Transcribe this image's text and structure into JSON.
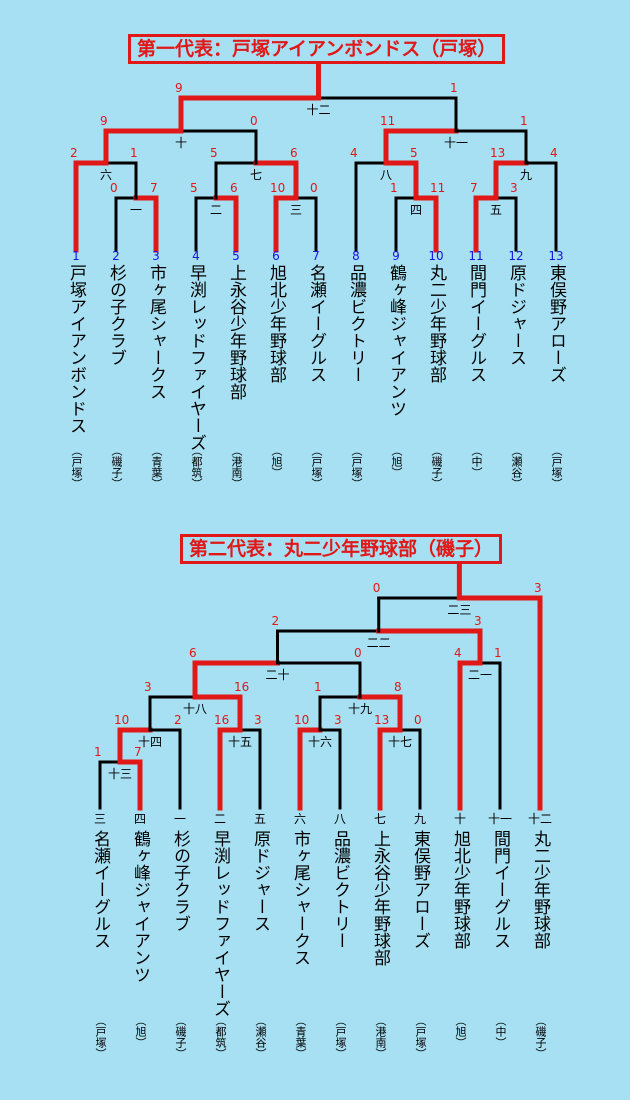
{
  "bracket1": {
    "title": "第一代表：戸塚アイアンボンドス（戸塚）",
    "teams": [
      {
        "seed": "1",
        "name": "戸塚アイアンボンドス",
        "area": "（戸塚）"
      },
      {
        "seed": "2",
        "name": "杉の子クラブ",
        "area": "（磯子）"
      },
      {
        "seed": "3",
        "name": "市ヶ尾シャークス",
        "area": "（青葉）"
      },
      {
        "seed": "4",
        "name": "早渕レッドファイヤーズ",
        "area": "（都筑）"
      },
      {
        "seed": "5",
        "name": "上永谷少年野球部",
        "area": "（港南）"
      },
      {
        "seed": "6",
        "name": "旭北少年野球部",
        "area": "（旭）"
      },
      {
        "seed": "7",
        "name": "名瀬イーグルス",
        "area": "（戸塚）"
      },
      {
        "seed": "8",
        "name": "品濃ビクトリー",
        "area": "（戸塚）"
      },
      {
        "seed": "9",
        "name": "鶴ヶ峰ジャイアンツ",
        "area": "（旭）"
      },
      {
        "seed": "10",
        "name": "丸二少年野球部",
        "area": "（磯子）"
      },
      {
        "seed": "11",
        "name": "間門イーグルス",
        "area": "（中）"
      },
      {
        "seed": "12",
        "name": "原ドジャース",
        "area": "（瀬谷）"
      },
      {
        "seed": "13",
        "name": "東俣野アローズ",
        "area": "（戸塚）"
      }
    ],
    "games": [
      {
        "label": "一",
        "scores": [
          "0",
          "7"
        ]
      },
      {
        "label": "二",
        "scores": [
          "5",
          "6"
        ]
      },
      {
        "label": "三",
        "scores": [
          "10",
          "0"
        ]
      },
      {
        "label": "四",
        "scores": [
          "1",
          "11"
        ]
      },
      {
        "label": "五",
        "scores": [
          "7",
          "3"
        ]
      },
      {
        "label": "六",
        "scores": [
          "2",
          "1"
        ]
      },
      {
        "label": "七",
        "scores": [
          "5",
          "6"
        ]
      },
      {
        "label": "八",
        "scores": [
          "4",
          "5"
        ]
      },
      {
        "label": "九",
        "scores": [
          "13",
          "4"
        ]
      },
      {
        "label": "十",
        "scores": [
          "9",
          "0"
        ]
      },
      {
        "label": "十一",
        "scores": [
          "11",
          "1"
        ]
      },
      {
        "label": "十二",
        "scores": [
          "9",
          "1"
        ]
      }
    ]
  },
  "bracket2": {
    "title": "第二代表：丸二少年野球部（磯子）",
    "teams": [
      {
        "slot": "三",
        "name": "名瀬イーグルス",
        "area": "（戸塚）"
      },
      {
        "slot": "四",
        "name": "鶴ヶ峰ジャイアンツ",
        "area": "（旭）"
      },
      {
        "slot": "一",
        "name": "杉の子クラブ",
        "area": "（磯子）"
      },
      {
        "slot": "二",
        "name": "早渕レッドファイヤーズ",
        "area": "（都筑）"
      },
      {
        "slot": "五",
        "name": "原ドジャース",
        "area": "（瀬谷）"
      },
      {
        "slot": "六",
        "name": "市ヶ尾シャークス",
        "area": "（青葉）"
      },
      {
        "slot": "八",
        "name": "品濃ビクトリー",
        "area": "（戸塚）"
      },
      {
        "slot": "七",
        "name": "上永谷少年野球部",
        "area": "（港南）"
      },
      {
        "slot": "九",
        "name": "東俣野アローズ",
        "area": "（戸塚）"
      },
      {
        "slot": "十",
        "name": "旭北少年野球部",
        "area": "（旭）"
      },
      {
        "slot": "十一",
        "name": "間門イーグルス",
        "area": "（中）"
      },
      {
        "slot": "十二",
        "name": "丸二少年野球部",
        "area": "（磯子）"
      }
    ],
    "games": [
      {
        "label": "十三",
        "scores": [
          "1",
          "7"
        ]
      },
      {
        "label": "十四",
        "scores": [
          "10",
          "2"
        ]
      },
      {
        "label": "十五",
        "scores": [
          "16",
          "3"
        ]
      },
      {
        "label": "十六",
        "scores": [
          "10",
          "3"
        ]
      },
      {
        "label": "十七",
        "scores": [
          "13",
          "0"
        ]
      },
      {
        "label": "十八",
        "scores": [
          "3",
          "16"
        ]
      },
      {
        "label": "十九",
        "scores": [
          "1",
          "8"
        ]
      },
      {
        "label": "二十",
        "scores": [
          "6",
          "0"
        ]
      },
      {
        "label": "二一",
        "scores": [
          "4",
          "1"
        ]
      },
      {
        "label": "二二",
        "scores": [
          "2",
          "3"
        ]
      },
      {
        "label": "二三",
        "scores": [
          "0",
          "3"
        ]
      }
    ]
  },
  "colors": {
    "background": "#a7e0f2",
    "winner_line": "#e01818",
    "loser_line": "#000000",
    "score": "#e01818",
    "seed": "#1515e0"
  }
}
